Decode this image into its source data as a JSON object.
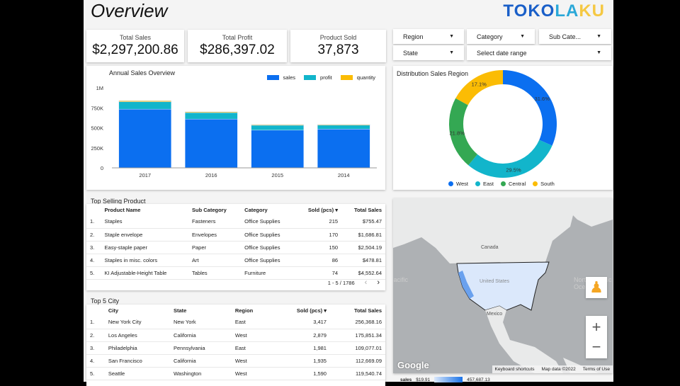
{
  "header": {
    "title": "Overview",
    "logo": "TOKOLAKU"
  },
  "kpis": [
    {
      "label": "Total Sales",
      "value": "$2,297,200.86"
    },
    {
      "label": "Total Profit",
      "value": "$286,397.02"
    },
    {
      "label": "Product Sold",
      "value": "37,873"
    }
  ],
  "filters": {
    "region": "Region",
    "category": "Category",
    "subcategory": "Sub Cate...",
    "state": "State",
    "date": "Select date range"
  },
  "chart_data": [
    {
      "type": "bar",
      "stacked": true,
      "title": "Annual Sales Overview",
      "categories": [
        "2017",
        "2016",
        "2015",
        "2014"
      ],
      "ylim": [
        0,
        1000000
      ],
      "yticks": [
        "0",
        "250K",
        "500K",
        "750K",
        "1M"
      ],
      "legend_position": "top-right",
      "series": [
        {
          "name": "sales",
          "color": "#0b6ff0",
          "values": [
            733000,
            609000,
            471000,
            484000
          ]
        },
        {
          "name": "profit",
          "color": "#12b5cb",
          "values": [
            93000,
            81000,
            61000,
            50000
          ]
        },
        {
          "name": "quantity",
          "color": "#fbbc04",
          "values": [
            12500,
            10300,
            8300,
            7600
          ]
        }
      ]
    },
    {
      "type": "pie",
      "donut": true,
      "title": "Distribution Sales Region",
      "legend_position": "bottom",
      "slices": [
        {
          "name": "West",
          "value": 31.6,
          "label": "31.6%",
          "color": "#0b6ff0"
        },
        {
          "name": "East",
          "value": 29.5,
          "label": "29.5%",
          "color": "#12b5cb"
        },
        {
          "name": "Central",
          "value": 21.8,
          "label": "21.8%",
          "color": "#34a853"
        },
        {
          "name": "South",
          "value": 17.1,
          "label": "17.1%",
          "color": "#fbbc04"
        }
      ]
    }
  ],
  "products": {
    "title": "Top Selling Product",
    "columns": [
      "Product Name",
      "Sub Category",
      "Category",
      "Sold (pcs)",
      "Total Sales"
    ],
    "rows": [
      [
        "1.",
        "Staples",
        "Fasteners",
        "Office Supplies",
        "215",
        "$755.47"
      ],
      [
        "2.",
        "Staple envelope",
        "Envelopes",
        "Office Supplies",
        "170",
        "$1,686.81"
      ],
      [
        "3.",
        "Easy-staple paper",
        "Paper",
        "Office Supplies",
        "150",
        "$2,504.19"
      ],
      [
        "4.",
        "Staples in misc. colors",
        "Art",
        "Office Supplies",
        "86",
        "$478.81"
      ],
      [
        "5.",
        "KI Adjustable-Height Table",
        "Tables",
        "Furniture",
        "74",
        "$4,552.64"
      ]
    ],
    "pagination": "1 - 5 / 1786"
  },
  "cities": {
    "title": "Top 5 City",
    "columns": [
      "City",
      "State",
      "Region",
      "Sold (pcs)",
      "Total Sales"
    ],
    "rows": [
      [
        "1.",
        "New York City",
        "New York",
        "East",
        "3,417",
        "256,368.16"
      ],
      [
        "2.",
        "Los Angeles",
        "California",
        "West",
        "2,879",
        "175,851.34"
      ],
      [
        "3.",
        "Philadelphia",
        "Pennsylvania",
        "East",
        "1,981",
        "109,077.01"
      ],
      [
        "4.",
        "San Francisco",
        "California",
        "West",
        "1,935",
        "112,669.09"
      ],
      [
        "5.",
        "Seattle",
        "Washington",
        "West",
        "1,590",
        "119,540.74"
      ]
    ]
  },
  "map": {
    "labels": {
      "canada": "Canada",
      "us": "United States",
      "mexico": "Mexico",
      "pacific": "North Pacific Ocean",
      "atlantic": "North Atlantic Ocean"
    },
    "google": "Google",
    "shortcuts": "Keyboard shortcuts",
    "mapdata": "Map data ©2022",
    "terms": "Terms of Use",
    "legend": {
      "metric": "sales",
      "min": "$19.91",
      "max": "457,687.13"
    }
  }
}
